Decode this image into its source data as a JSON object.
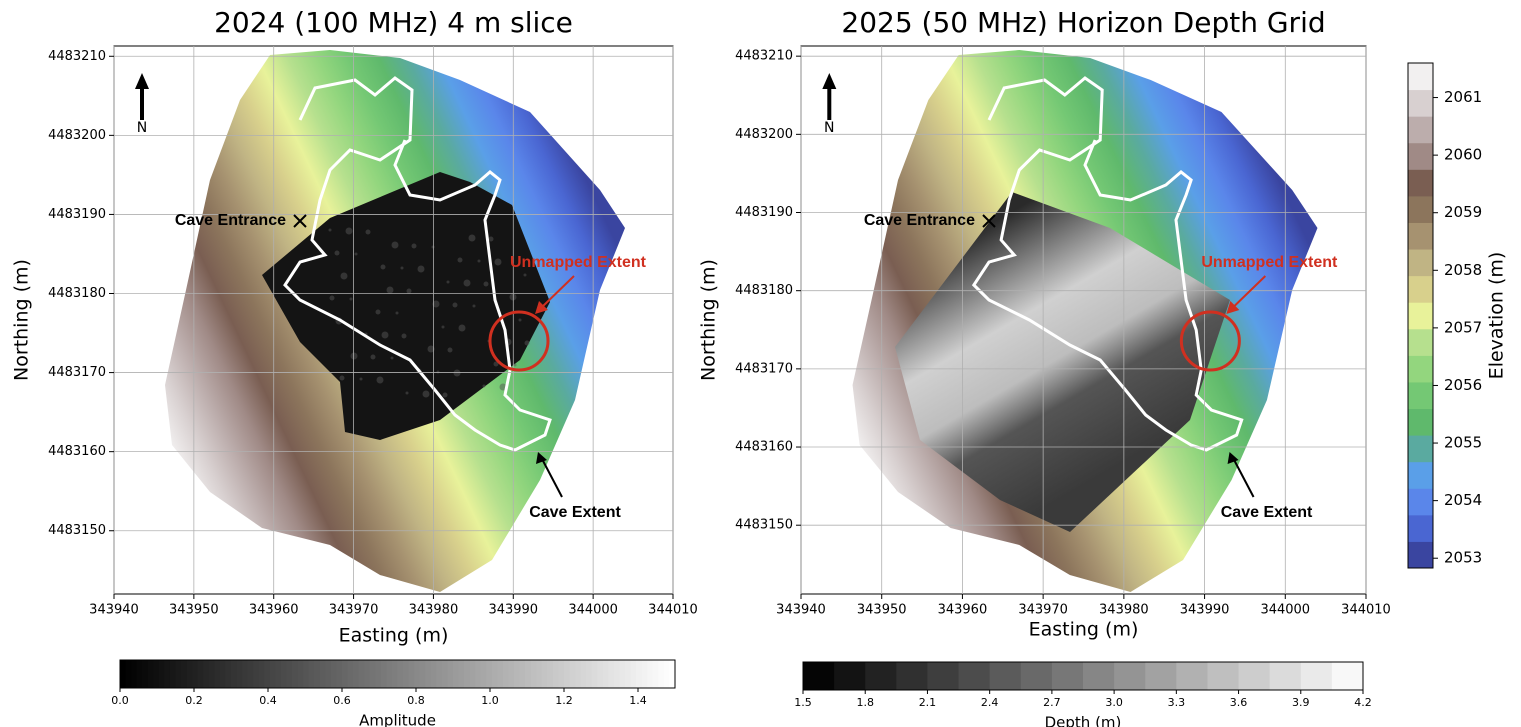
{
  "chart_data": [
    {
      "type": "map",
      "title": "2024 (100 MHz) 4 m slice",
      "x_label": "Easting (m)",
      "y_label": "Northing (m)",
      "xlim": [
        343940,
        344010
      ],
      "xticks": [
        343940,
        343950,
        343960,
        343970,
        343980,
        343990,
        344000,
        344010
      ],
      "ylim": [
        4483142,
        4483211.3
      ],
      "yticks": [
        4483150,
        4483160,
        4483170,
        4483180,
        4483190,
        4483200,
        4483210
      ],
      "grid": true,
      "overlay": "amplitude",
      "annotations": [
        "N",
        "Cave Entrance",
        "Unmapped Extent",
        "Cave Extent"
      ]
    },
    {
      "type": "map",
      "title": "2025 (50 MHz) Horizon Depth Grid",
      "x_label": "Easting (m)",
      "y_label": "Northing (m)",
      "xlim": [
        343940,
        344010
      ],
      "xticks": [
        343940,
        343950,
        343960,
        343970,
        343980,
        343990,
        344000,
        344010
      ],
      "ylim": [
        4483141.2,
        4483211.3
      ],
      "yticks": [
        4483150,
        4483160,
        4483170,
        4483180,
        4483190,
        4483200,
        4483210
      ],
      "grid": true,
      "overlay": "depth",
      "annotations": [
        "N",
        "Cave Entrance",
        "Unmapped Extent",
        "Cave Extent"
      ]
    },
    {
      "type": "colorbar",
      "orientation": "horizontal",
      "label": "Amplitude",
      "xlim": [
        0,
        1.5
      ],
      "xticks": [
        {
          "value": 0,
          "label": "0.0"
        },
        0.2,
        0.4,
        0.6,
        0.8,
        {
          "value": 1,
          "label": "1.0"
        },
        1.2,
        1.4
      ],
      "cmap": [
        "#000000",
        "#ffffff"
      ]
    },
    {
      "type": "colorbar",
      "orientation": "horizontal",
      "label": "Depth (m)",
      "xlim": [
        1.5,
        4.2
      ],
      "xticks": [
        1.5,
        1.8,
        2.1,
        2.4,
        2.7,
        {
          "value": 3,
          "label": "3.0"
        },
        3.3,
        3.6,
        3.9,
        4.2
      ],
      "cmap": [
        "#050505",
        "#f8f8f8"
      ],
      "levels": 18
    },
    {
      "type": "colorbar",
      "orientation": "vertical",
      "label": "Elevation (m)",
      "ylim": [
        2052.83,
        2061.6
      ],
      "yticks": [
        2053,
        2054,
        2055,
        2056,
        2057,
        2058,
        2059,
        2060,
        2061
      ],
      "colors": [
        "#3a45a0",
        "#4a66d2",
        "#5a86ea",
        "#5a9fe8",
        "#5aaaa0",
        "#5fb96c",
        "#74c874",
        "#93d67e",
        "#b6e08e",
        "#e8f29a",
        "#d8d08c",
        "#c0b484",
        "#a69270",
        "#8c755c",
        "#7a5e52",
        "#a08a86",
        "#bcadac",
        "#d8d0d0",
        "#f2f0f0"
      ]
    }
  ]
}
